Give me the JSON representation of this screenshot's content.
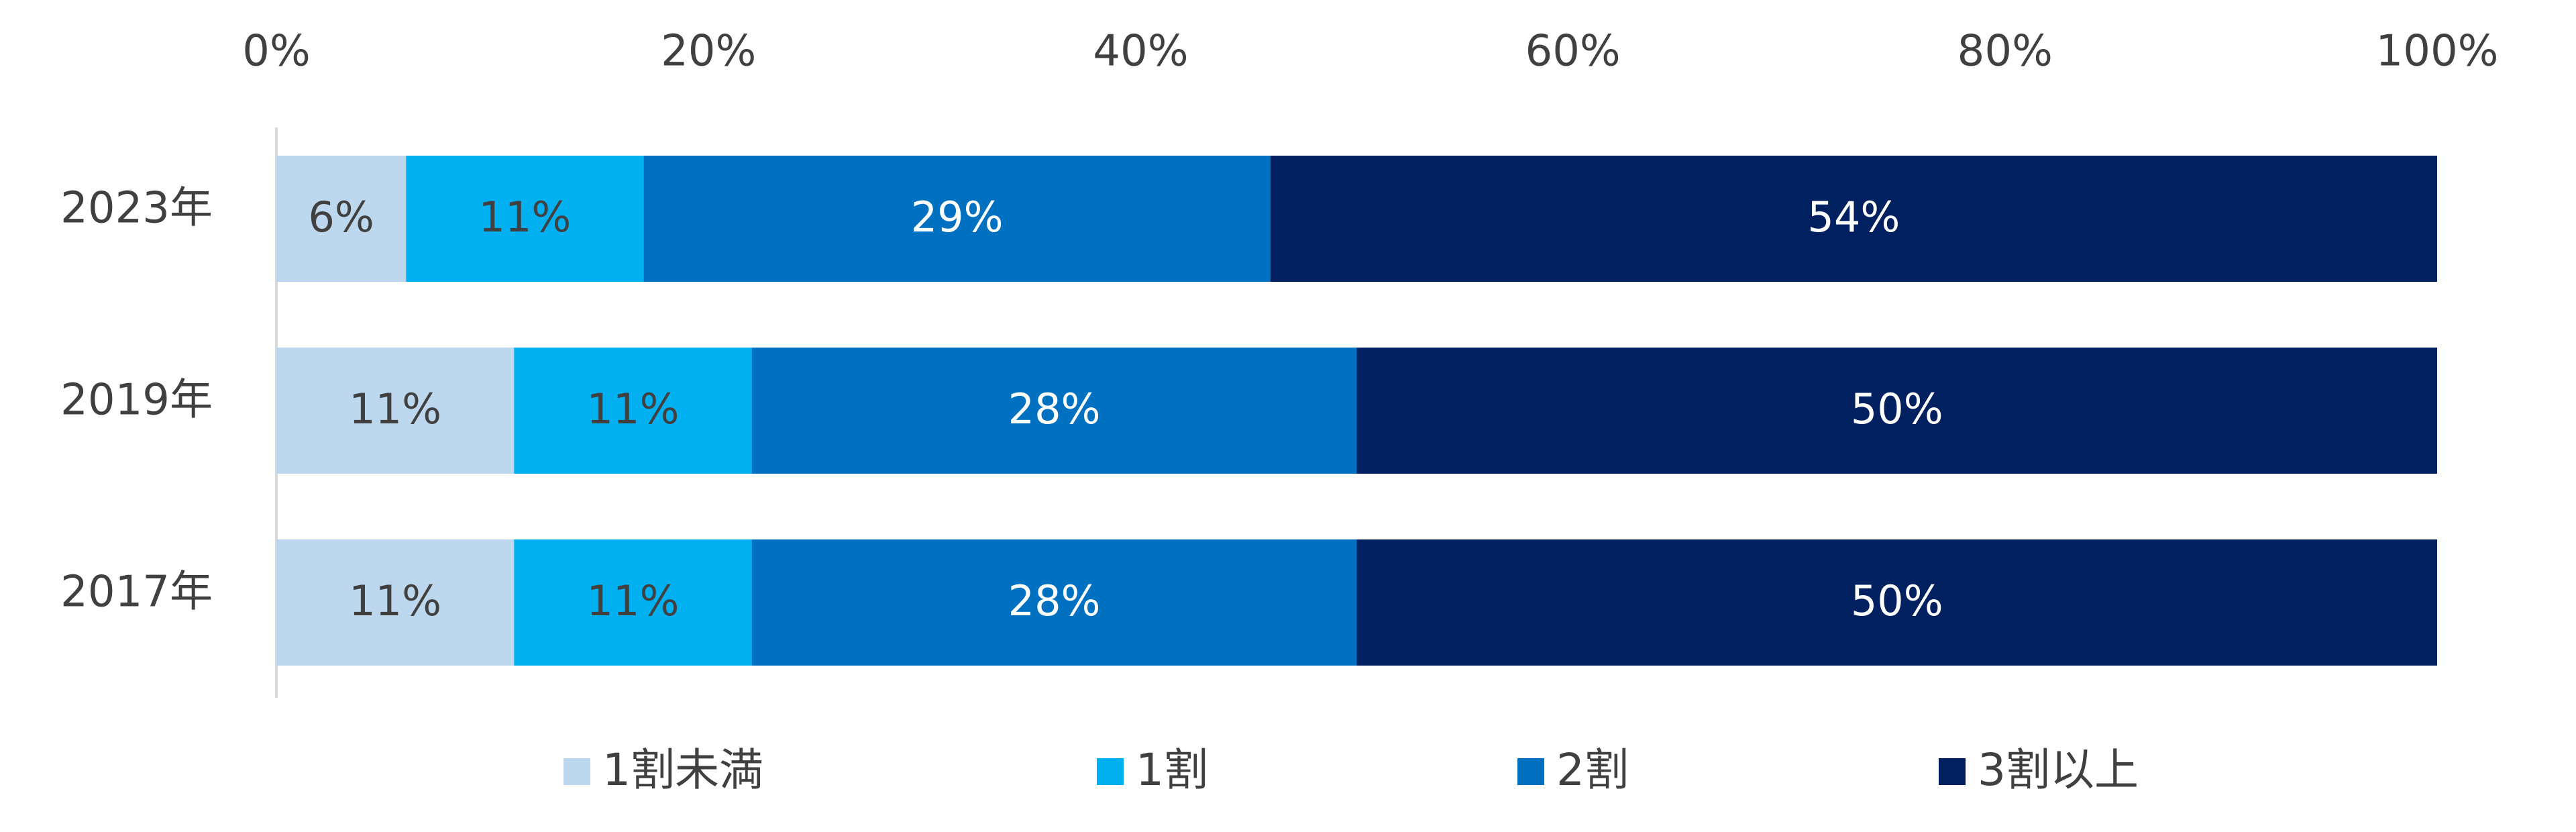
{
  "chart_data": {
    "type": "bar",
    "orientation": "horizontal",
    "stacked": true,
    "percent_stacked": true,
    "title": "",
    "xlabel": "",
    "ylabel": "",
    "xlim": [
      0,
      100
    ],
    "x_ticks": [
      0,
      20,
      40,
      60,
      80,
      100
    ],
    "x_tick_labels": [
      "0%",
      "20%",
      "40%",
      "60%",
      "80%",
      "100%"
    ],
    "x_axis_position": "top",
    "grid": false,
    "legend_position": "bottom",
    "categories": [
      "2023年",
      "2019年",
      "2017年"
    ],
    "series": [
      {
        "name": "1割未満",
        "color": "#bdd7ee",
        "label_color": "#404040",
        "values": [
          6,
          11,
          11
        ],
        "labels": [
          "6%",
          "11%",
          "11%"
        ]
      },
      {
        "name": "1割",
        "color": "#00b0f0",
        "label_color": "#404040",
        "values": [
          11,
          11,
          11
        ],
        "labels": [
          "11%",
          "11%",
          "11%"
        ]
      },
      {
        "name": "2割",
        "color": "#0070c0",
        "label_color": "#ffffff",
        "values": [
          29,
          28,
          28
        ],
        "labels": [
          "29%",
          "28%",
          "28%"
        ]
      },
      {
        "name": "3割以上",
        "color": "#002060",
        "label_color": "#ffffff",
        "values": [
          54,
          50,
          50
        ],
        "labels": [
          "54%",
          "50%",
          "50%"
        ]
      }
    ]
  }
}
